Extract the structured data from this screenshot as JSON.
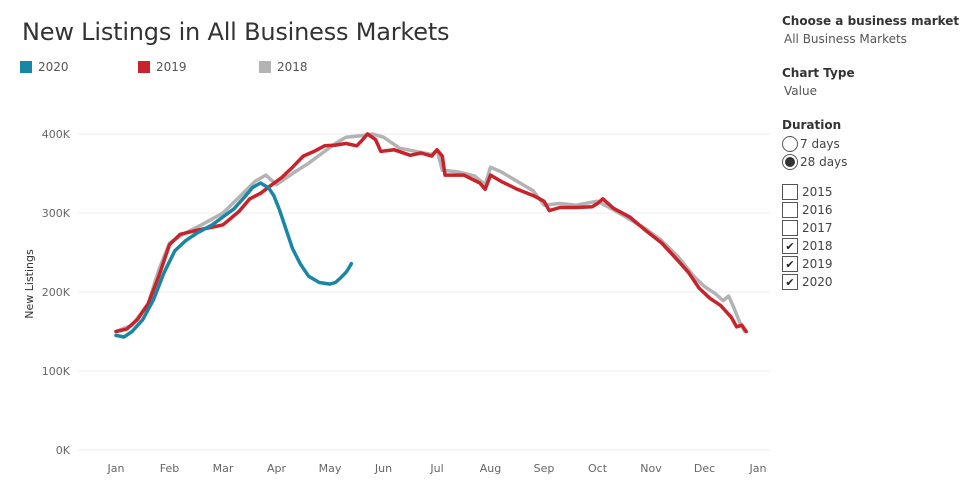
{
  "title": "New Listings in All Business Markets",
  "legend": [
    {
      "label": "2020",
      "color": "#1a86a6"
    },
    {
      "label": "2019",
      "color": "#c8222a"
    },
    {
      "label": "2018",
      "color": "#b3b3b3"
    }
  ],
  "controls": {
    "market_label": "Choose a business market",
    "market_value": "All Business Markets",
    "chart_type_label": "Chart Type",
    "chart_type_value": "Value",
    "duration_label": "Duration",
    "duration_options": [
      {
        "label": "7 days",
        "selected": false
      },
      {
        "label": "28 days",
        "selected": true
      }
    ],
    "years": [
      {
        "label": "2015",
        "checked": false
      },
      {
        "label": "2016",
        "checked": false
      },
      {
        "label": "2017",
        "checked": false
      },
      {
        "label": "2018",
        "checked": true
      },
      {
        "label": "2019",
        "checked": true
      },
      {
        "label": "2020",
        "checked": true
      }
    ],
    "check_glyph": "✔"
  },
  "chart_data": {
    "type": "line",
    "title": "New Listings in All Business Markets",
    "xlabel": "",
    "ylabel": "New Listings",
    "x_ticks": [
      "Jan",
      "Feb",
      "Mar",
      "Apr",
      "May",
      "Jun",
      "Jul",
      "Aug",
      "Sep",
      "Oct",
      "Nov",
      "Dec",
      "Jan"
    ],
    "y_ticks": [
      "0K",
      "100K",
      "200K",
      "300K",
      "400K"
    ],
    "ylim": [
      0,
      420000
    ],
    "xlim": [
      -0.2,
      12.2
    ],
    "grid": true,
    "x_unit": "months since Jan 1",
    "series": [
      {
        "name": "2018",
        "color": "#b3b3b3",
        "points": [
          [
            0,
            150000
          ],
          [
            0.3,
            158000
          ],
          [
            0.6,
            185000
          ],
          [
            0.8,
            228000
          ],
          [
            1.0,
            262000
          ],
          [
            1.3,
            275000
          ],
          [
            1.6,
            285000
          ],
          [
            2.0,
            300000
          ],
          [
            2.3,
            320000
          ],
          [
            2.6,
            340000
          ],
          [
            2.8,
            348000
          ],
          [
            3.0,
            336000
          ],
          [
            3.3,
            350000
          ],
          [
            3.6,
            363000
          ],
          [
            3.9,
            378000
          ],
          [
            4.1,
            388000
          ],
          [
            4.3,
            396000
          ],
          [
            4.6,
            398000
          ],
          [
            4.8,
            400000
          ],
          [
            5.0,
            396000
          ],
          [
            5.3,
            382000
          ],
          [
            5.6,
            378000
          ],
          [
            5.9,
            374000
          ],
          [
            6.0,
            380000
          ],
          [
            6.1,
            354000
          ],
          [
            6.4,
            352000
          ],
          [
            6.7,
            347000
          ],
          [
            6.9,
            336000
          ],
          [
            7.0,
            358000
          ],
          [
            7.2,
            352000
          ],
          [
            7.5,
            340000
          ],
          [
            7.8,
            328000
          ],
          [
            8.0,
            310000
          ],
          [
            8.3,
            312000
          ],
          [
            8.6,
            310000
          ],
          [
            9.0,
            315000
          ],
          [
            9.3,
            304000
          ],
          [
            9.6,
            292000
          ],
          [
            9.9,
            280000
          ],
          [
            10.2,
            265000
          ],
          [
            10.5,
            245000
          ],
          [
            10.8,
            220000
          ],
          [
            11.0,
            207000
          ],
          [
            11.2,
            198000
          ],
          [
            11.35,
            189000
          ],
          [
            11.45,
            195000
          ],
          [
            11.55,
            180000
          ],
          [
            11.65,
            163000
          ],
          [
            11.75,
            150000
          ]
        ]
      },
      {
        "name": "2019",
        "color": "#c8222a",
        "points": [
          [
            0,
            150000
          ],
          [
            0.2,
            153000
          ],
          [
            0.4,
            165000
          ],
          [
            0.6,
            185000
          ],
          [
            0.8,
            220000
          ],
          [
            1.0,
            260000
          ],
          [
            1.2,
            273000
          ],
          [
            1.5,
            278000
          ],
          [
            1.8,
            282000
          ],
          [
            2.0,
            285000
          ],
          [
            2.3,
            302000
          ],
          [
            2.5,
            318000
          ],
          [
            2.7,
            325000
          ],
          [
            2.9,
            335000
          ],
          [
            3.1,
            345000
          ],
          [
            3.3,
            358000
          ],
          [
            3.5,
            372000
          ],
          [
            3.7,
            378000
          ],
          [
            3.9,
            385000
          ],
          [
            4.1,
            386000
          ],
          [
            4.3,
            388000
          ],
          [
            4.5,
            385000
          ],
          [
            4.6,
            392000
          ],
          [
            4.7,
            400000
          ],
          [
            4.85,
            393000
          ],
          [
            4.95,
            378000
          ],
          [
            5.2,
            380000
          ],
          [
            5.5,
            373000
          ],
          [
            5.7,
            376000
          ],
          [
            5.9,
            372000
          ],
          [
            6.0,
            380000
          ],
          [
            6.1,
            372000
          ],
          [
            6.15,
            348000
          ],
          [
            6.5,
            348000
          ],
          [
            6.8,
            338000
          ],
          [
            6.9,
            330000
          ],
          [
            7.0,
            348000
          ],
          [
            7.2,
            340000
          ],
          [
            7.5,
            330000
          ],
          [
            7.8,
            322000
          ],
          [
            8.0,
            315000
          ],
          [
            8.1,
            303000
          ],
          [
            8.3,
            307000
          ],
          [
            8.6,
            307000
          ],
          [
            8.9,
            308000
          ],
          [
            9.0,
            312000
          ],
          [
            9.1,
            318000
          ],
          [
            9.3,
            306000
          ],
          [
            9.6,
            295000
          ],
          [
            9.9,
            278000
          ],
          [
            10.2,
            262000
          ],
          [
            10.5,
            240000
          ],
          [
            10.7,
            225000
          ],
          [
            10.9,
            205000
          ],
          [
            11.1,
            192000
          ],
          [
            11.3,
            183000
          ],
          [
            11.5,
            168000
          ],
          [
            11.6,
            156000
          ],
          [
            11.7,
            158000
          ],
          [
            11.78,
            150000
          ]
        ]
      },
      {
        "name": "2020",
        "color": "#1a86a6",
        "points": [
          [
            0,
            145000
          ],
          [
            0.15,
            143000
          ],
          [
            0.3,
            150000
          ],
          [
            0.5,
            165000
          ],
          [
            0.7,
            190000
          ],
          [
            0.9,
            225000
          ],
          [
            1.1,
            252000
          ],
          [
            1.3,
            265000
          ],
          [
            1.5,
            274000
          ],
          [
            1.8,
            285000
          ],
          [
            2.0,
            295000
          ],
          [
            2.2,
            305000
          ],
          [
            2.4,
            320000
          ],
          [
            2.55,
            332000
          ],
          [
            2.7,
            338000
          ],
          [
            2.85,
            332000
          ],
          [
            2.95,
            322000
          ],
          [
            3.05,
            305000
          ],
          [
            3.15,
            285000
          ],
          [
            3.3,
            255000
          ],
          [
            3.45,
            235000
          ],
          [
            3.6,
            220000
          ],
          [
            3.8,
            212000
          ],
          [
            4.0,
            210000
          ],
          [
            4.1,
            212000
          ],
          [
            4.2,
            218000
          ],
          [
            4.3,
            225000
          ],
          [
            4.35,
            230000
          ],
          [
            4.4,
            236000
          ]
        ]
      }
    ]
  }
}
